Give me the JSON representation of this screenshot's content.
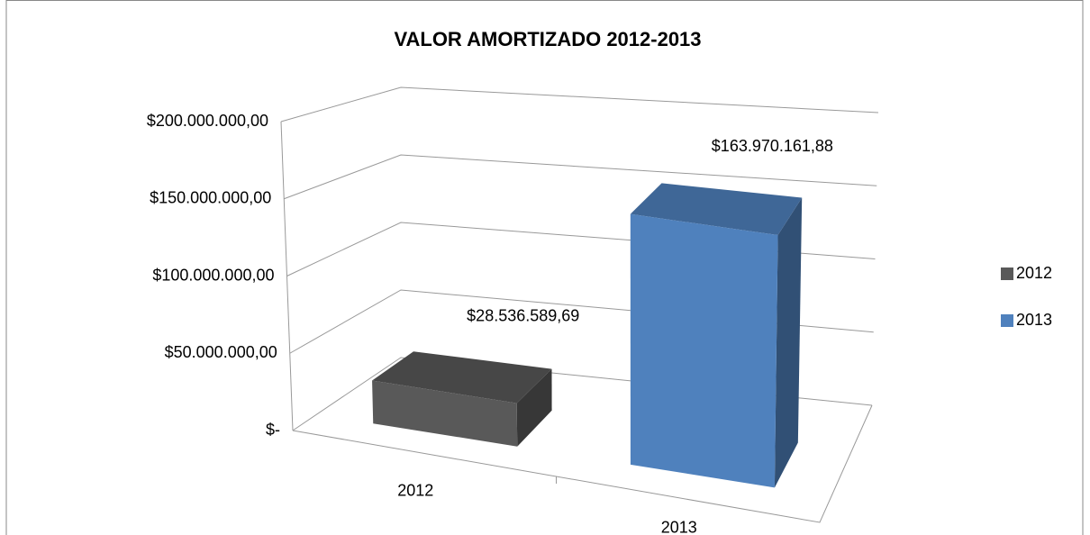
{
  "chart_data": {
    "type": "bar3d",
    "title": "VALOR AMORTIZADO 2012-2013",
    "categories": [
      "2012",
      "2013"
    ],
    "series": [
      {
        "name": "2012",
        "color": "#595959",
        "values": [
          28536589.69,
          null
        ],
        "value_labels": [
          "$28.536.589,69",
          null
        ]
      },
      {
        "name": "2013",
        "color": "#4f81bd",
        "values": [
          null,
          163970161.88
        ],
        "value_labels": [
          null,
          "$163.970.161,88"
        ]
      }
    ],
    "ylim": [
      0,
      200000000
    ],
    "yticks": [
      {
        "value": 0,
        "label": "$-"
      },
      {
        "value": 50000000,
        "label": "$50.000.000,00"
      },
      {
        "value": 100000000,
        "label": "$100.000.000,00"
      },
      {
        "value": 150000000,
        "label": "$150.000.000,00"
      },
      {
        "value": 200000000,
        "label": "$200.000.000,00"
      }
    ],
    "grid": true,
    "legend": "right"
  }
}
